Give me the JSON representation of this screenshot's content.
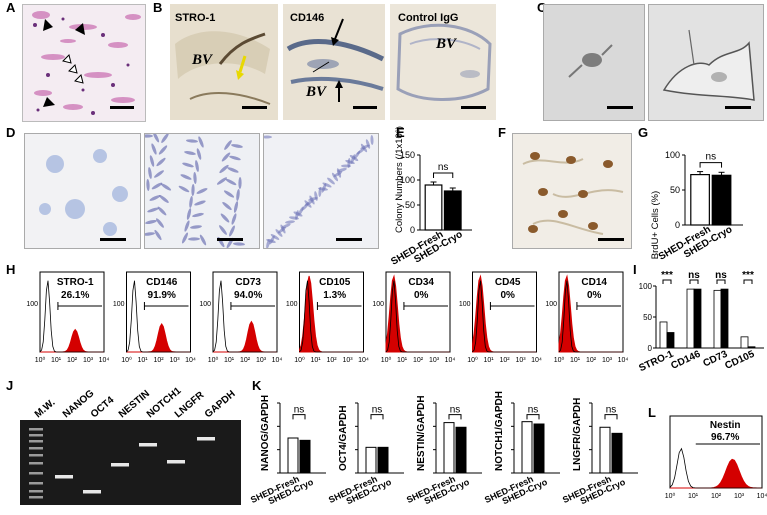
{
  "panel_letters": [
    "A",
    "B",
    "C",
    "D",
    "E",
    "F",
    "G",
    "H",
    "I",
    "J",
    "K",
    "L"
  ],
  "panel_b": {
    "labels": [
      "STRO-1",
      "CD146",
      "Control IgG"
    ],
    "bv": "BV"
  },
  "panel_e": {
    "ylabel": "Colony Numbers (/1x10⁶)",
    "ns": "ns"
  },
  "panel_g": {
    "ylabel": "BrdU+ Cells (%)",
    "ns": "ns"
  },
  "groups": [
    "SHED-Fresh",
    "SHED-Cryo"
  ],
  "flow_markers": [
    {
      "name": "STRO-1",
      "pct": "26.1%"
    },
    {
      "name": "CD146",
      "pct": "91.9%"
    },
    {
      "name": "CD73",
      "pct": "94.0%"
    },
    {
      "name": "CD105",
      "pct": "1.3%"
    },
    {
      "name": "CD34",
      "pct": "0%"
    },
    {
      "name": "CD45",
      "pct": "0%"
    },
    {
      "name": "CD14",
      "pct": "0%"
    }
  ],
  "flow_ticks": [
    "10⁰",
    "10¹",
    "10²",
    "10³",
    "10⁴"
  ],
  "flow_ytick": "100",
  "panel_i": {
    "sig": [
      "***",
      "ns",
      "ns",
      "***"
    ]
  },
  "panel_j": {
    "lanes": [
      "M.W.",
      "NANOG",
      "OCT4",
      "NESTIN",
      "NOTCH1",
      "LNGFR",
      "GAPDH"
    ]
  },
  "panel_k_ylabels": [
    "NANOG/GAPDH",
    "OCT4/GAPDH",
    "NESTIN/GAPDH",
    "NOTCH1/GAPDH",
    "LNGFR/GAPDH"
  ],
  "panel_l": {
    "name": "Nestin",
    "pct": "96.7%"
  },
  "colors": {
    "red": "#d40000",
    "black": "#000000",
    "white": "#ffffff",
    "grey_bg": "#d8d8d8"
  },
  "chart_data": [
    {
      "panel": "E",
      "type": "bar",
      "categories": [
        "SHED-Fresh",
        "SHED-Cryo"
      ],
      "values": [
        90,
        78
      ],
      "ylim": [
        0,
        150
      ],
      "yticks": [
        0,
        50,
        100,
        150
      ],
      "ylabel": "Colony Numbers (/1x10⁶)"
    },
    {
      "panel": "G",
      "type": "bar",
      "categories": [
        "SHED-Fresh",
        "SHED-Cryo"
      ],
      "values": [
        72,
        71
      ],
      "ylim": [
        0,
        100
      ],
      "yticks": [
        0,
        50,
        100
      ],
      "ylabel": "BrdU+ Cells (%)"
    },
    {
      "panel": "I",
      "type": "bar",
      "categories": [
        "STRO-1",
        "CD146",
        "CD73",
        "CD105"
      ],
      "series": [
        {
          "name": "SHED-Fresh",
          "values": [
            42,
            95,
            93,
            18
          ]
        },
        {
          "name": "SHED-Cryo",
          "values": [
            25,
            95,
            95,
            2
          ]
        }
      ],
      "ylim": [
        0,
        100
      ],
      "yticks": [
        0,
        50,
        100
      ]
    },
    {
      "panel": "K",
      "type": "bar",
      "categories": [
        "NANOG",
        "OCT4",
        "NESTIN",
        "NOTCH1",
        "LNGFR"
      ],
      "series": [
        {
          "name": "SHED-Fresh",
          "values": [
            0.75,
            0.55,
            1.08,
            1.1,
            0.98
          ]
        },
        {
          "name": "SHED-Cryo",
          "values": [
            0.7,
            0.55,
            0.98,
            1.05,
            0.85
          ]
        }
      ],
      "ylim": [
        0,
        1.5
      ],
      "yticks": [
        0,
        0.5,
        1,
        1.5
      ]
    }
  ]
}
